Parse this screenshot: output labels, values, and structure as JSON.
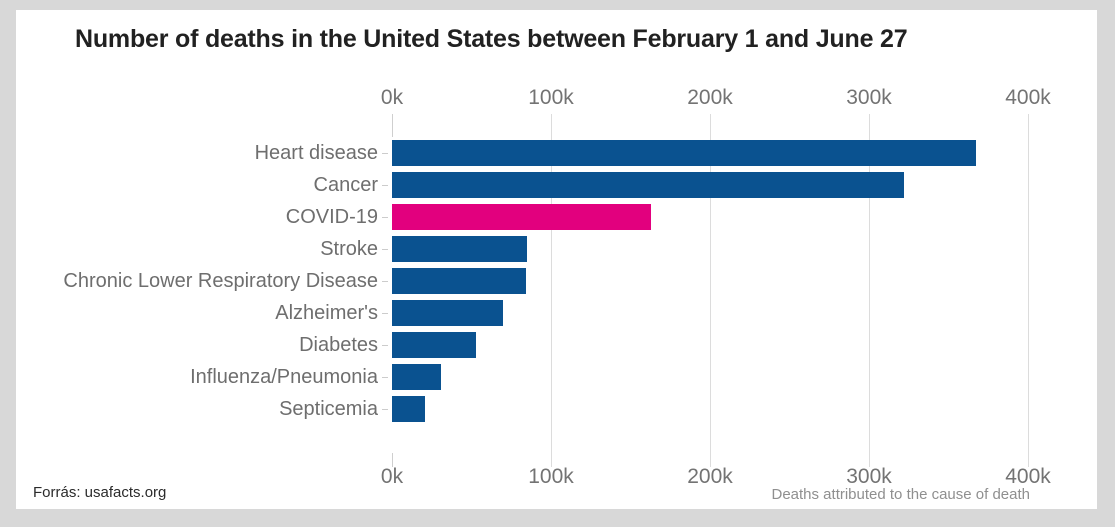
{
  "title": "Number of deaths in the United States between February 1 and June 27",
  "source_label": "Forrás: usafacts.org",
  "colors": {
    "background": "#d8d8d8",
    "card": "#ffffff",
    "bar_default": "#0a5290",
    "bar_highlight": "#e2007e",
    "title_text": "#212121",
    "axis_text": "#737373",
    "category_text": "#6e6e6e",
    "gridline": "#dcdcdc"
  },
  "chart_data": {
    "type": "bar",
    "orientation": "horizontal",
    "title": "Number of deaths in the United States between February 1 and June 27",
    "categories": [
      "Heart disease",
      "Cancer",
      "COVID-19",
      "Stroke",
      "Chronic Lower Respiratory Disease",
      "Alzheimer's",
      "Diabetes",
      "Influenza/Pneumonia",
      "Septicemia"
    ],
    "values": [
      367000,
      322000,
      163000,
      85000,
      84000,
      70000,
      53000,
      31000,
      21000
    ],
    "highlight_index": 2,
    "x_ticks": [
      "0k",
      "100k",
      "200k",
      "300k",
      "400k"
    ],
    "x_tick_values": [
      0,
      100000,
      200000,
      300000,
      400000
    ],
    "xlim": [
      0,
      400000
    ],
    "xlabel": "Deaths attributed to the cause of death",
    "ylabel": "",
    "grid": true,
    "legend": "none",
    "axis_label_position": "top and bottom"
  }
}
